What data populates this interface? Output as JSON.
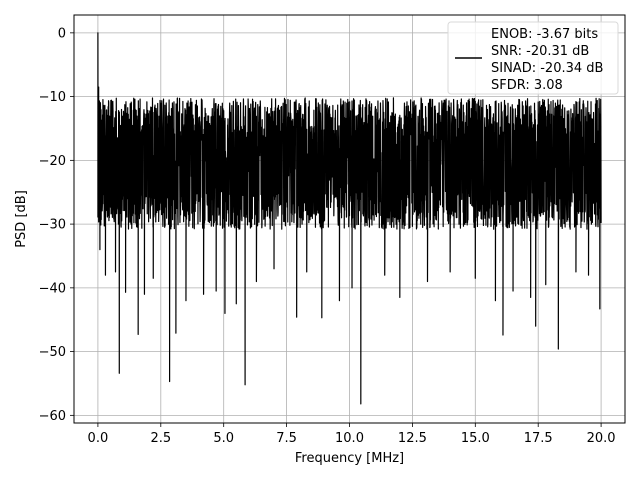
{
  "chart_data": {
    "type": "line",
    "title": "",
    "xlabel": "Frequency [MHz]",
    "ylabel": "PSD [dB]",
    "xlim": [
      -0.95,
      20.95
    ],
    "ylim": [
      -61.2,
      2.8
    ],
    "x_ticks": [
      0.0,
      2.5,
      5.0,
      7.5,
      10.0,
      12.5,
      15.0,
      17.5,
      20.0
    ],
    "x_tick_labels": [
      "0.0",
      "2.5",
      "5.0",
      "7.5",
      "10.0",
      "12.5",
      "15.0",
      "17.5",
      "20.0"
    ],
    "y_ticks": [
      0,
      -10,
      -20,
      -30,
      -40,
      -50,
      -60
    ],
    "y_tick_labels": [
      "0",
      "−10",
      "−20",
      "−30",
      "−40",
      "−50",
      "−60"
    ],
    "grid": true,
    "legend_position": "top-right",
    "legend_lines": [
      "ENOB: -3.67 bits",
      "SNR: -20.31 dB",
      "SINAD: -20.34 dB",
      "SFDR: 3.08"
    ],
    "series": [
      {
        "color": "#000000",
        "x_start": 0.0,
        "x_end": 20.0,
        "noise_band": [
          -29,
          -12
        ],
        "mean_level": -20,
        "peaks": [
          {
            "x": 0.0,
            "y": 0.0
          },
          {
            "x": 0.03,
            "y": -8.5
          }
        ],
        "dips": [
          {
            "x": 0.08,
            "y": -34
          },
          {
            "x": 0.3,
            "y": -38
          },
          {
            "x": 0.7,
            "y": -37.5
          },
          {
            "x": 0.85,
            "y": -53.4
          },
          {
            "x": 1.1,
            "y": -40.7
          },
          {
            "x": 1.6,
            "y": -47.3
          },
          {
            "x": 1.85,
            "y": -41
          },
          {
            "x": 2.2,
            "y": -38.5
          },
          {
            "x": 2.85,
            "y": -54.7
          },
          {
            "x": 3.1,
            "y": -47.1
          },
          {
            "x": 3.5,
            "y": -42
          },
          {
            "x": 4.2,
            "y": -41
          },
          {
            "x": 4.7,
            "y": -40.5
          },
          {
            "x": 5.05,
            "y": -44
          },
          {
            "x": 5.5,
            "y": -42.5
          },
          {
            "x": 5.85,
            "y": -55.2
          },
          {
            "x": 6.3,
            "y": -39
          },
          {
            "x": 7.0,
            "y": -37
          },
          {
            "x": 7.9,
            "y": -44.6
          },
          {
            "x": 8.3,
            "y": -37.5
          },
          {
            "x": 8.9,
            "y": -44.7
          },
          {
            "x": 9.6,
            "y": -42
          },
          {
            "x": 10.1,
            "y": -40
          },
          {
            "x": 10.45,
            "y": -58.2
          },
          {
            "x": 11.4,
            "y": -38
          },
          {
            "x": 12.0,
            "y": -41.5
          },
          {
            "x": 13.1,
            "y": -39
          },
          {
            "x": 14.0,
            "y": -37.5
          },
          {
            "x": 15.0,
            "y": -38.5
          },
          {
            "x": 15.8,
            "y": -42
          },
          {
            "x": 16.1,
            "y": -47.4
          },
          {
            "x": 16.5,
            "y": -40.5
          },
          {
            "x": 17.2,
            "y": -41.5
          },
          {
            "x": 17.4,
            "y": -46
          },
          {
            "x": 17.8,
            "y": -39.5
          },
          {
            "x": 18.3,
            "y": -49.6
          },
          {
            "x": 19.0,
            "y": -37.5
          },
          {
            "x": 19.5,
            "y": -38
          },
          {
            "x": 19.95,
            "y": -43.3
          }
        ]
      }
    ]
  }
}
